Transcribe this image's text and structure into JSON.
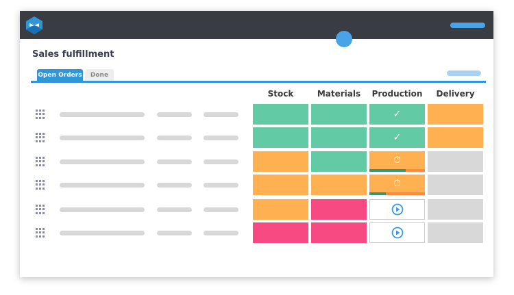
{
  "app": {
    "title": "Sales fulfillment",
    "tabs": [
      {
        "label": "Open Orders",
        "active": true
      },
      {
        "label": "Done",
        "active": false
      }
    ]
  },
  "colors": {
    "green": "#62cba5",
    "orange": "#ffb050",
    "pink": "#f74a82",
    "gray": "#d8d8d8",
    "accent": "#2f96d8"
  },
  "columns": [
    "Stock",
    "Materials",
    "Production",
    "Delivery"
  ],
  "rows": [
    {
      "stock": "green",
      "materials": "green",
      "production": {
        "color": "green",
        "icon": "check-icon",
        "glyph": "✓"
      },
      "delivery": "orange"
    },
    {
      "stock": "green",
      "materials": "green",
      "production": {
        "color": "green",
        "icon": "check-icon",
        "glyph": "✓"
      },
      "delivery": "orange"
    },
    {
      "stock": "orange",
      "materials": "green",
      "production": {
        "color": "orange",
        "icon": "stopwatch-icon",
        "glyph": "⏱",
        "progress": 0.65
      },
      "delivery": "gray"
    },
    {
      "stock": "orange",
      "materials": "orange",
      "production": {
        "color": "orange",
        "icon": "stopwatch-icon",
        "glyph": "⏱",
        "progress": 0.3
      },
      "delivery": "gray"
    },
    {
      "stock": "orange",
      "materials": "pink",
      "production": {
        "color": "white",
        "icon": "play-icon"
      },
      "delivery": "gray"
    },
    {
      "stock": "pink",
      "materials": "pink",
      "production": {
        "color": "white",
        "icon": "play-icon"
      },
      "delivery": "gray"
    }
  ]
}
